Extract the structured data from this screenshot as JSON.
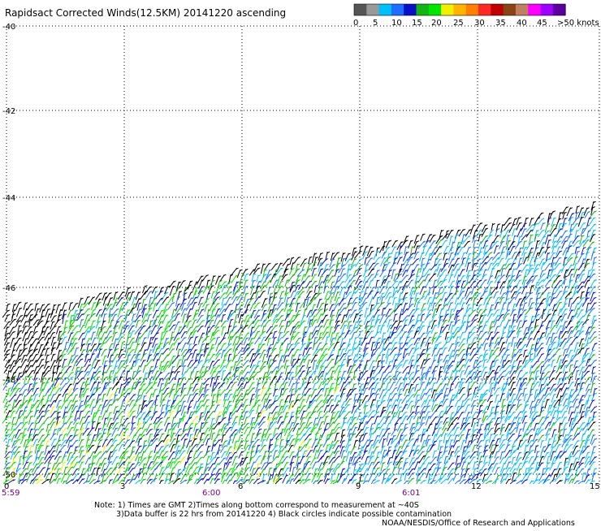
{
  "title": "Rapidsact Corrected Winds(12.5KM) 20141220 ascending",
  "legend": {
    "colors": [
      "#555555",
      "#999999",
      "#00bfff",
      "#1e6fff",
      "#0a10c8",
      "#14b414",
      "#00e600",
      "#f0f000",
      "#ffb400",
      "#ff7f00",
      "#ff2828",
      "#c00000",
      "#8b4513",
      "#c08060",
      "#ff00ff",
      "#a000ff",
      "#5a00a0"
    ],
    "labels": [
      "0",
      "5",
      "10",
      "15",
      "20",
      "25",
      "30",
      "35",
      "40",
      "45",
      ">50 knots"
    ]
  },
  "axes": {
    "lat_labels": [
      "-40",
      "-42",
      "-44",
      "-46",
      "-48",
      "-50"
    ],
    "lon_labels": [
      "0",
      "3",
      "6",
      "9",
      "12",
      "15"
    ],
    "time_labels": [
      "5:59",
      "6:00",
      "6:01"
    ]
  },
  "notes": {
    "line1": "Note: 1) Times are GMT 2)Times along bottom correspond to measurement at ~40S",
    "line2": "3)Data buffer is 22 hrs from 20141220 4) Black circles indicate possible contamination",
    "credit": "NOAA/NESDIS/Office of Research and Applications"
  }
}
